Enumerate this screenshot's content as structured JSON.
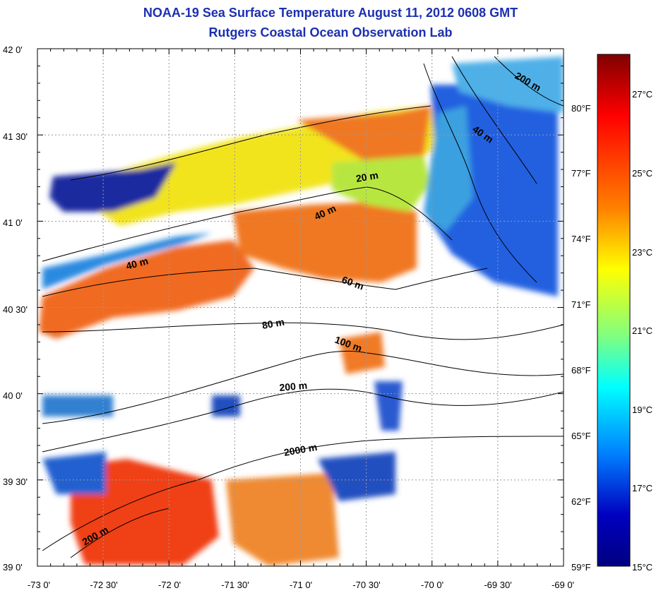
{
  "title": "NOAA-19 Sea Surface Temperature August 11, 2012 0608 GMT",
  "subtitle": "Rutgers Coastal Ocean Observation Lab",
  "latitude_labels": [
    "42 0'",
    "41 30'",
    "41 0'",
    "40 30'",
    "40 0'",
    "39 30'",
    "39 0'"
  ],
  "longitude_labels": [
    "-73 0'",
    "-72 30'",
    "-72 0'",
    "-71 30'",
    "-71 0'",
    "-70 30'",
    "-70 0'",
    "-69 30'",
    "-69 0'"
  ],
  "contour_labels": [
    "20 m",
    "40 m",
    "40 m",
    "40 m",
    "60 m",
    "80 m",
    "100 m",
    "200 m",
    "200 m",
    "2000 m",
    "200 m"
  ],
  "colorbar": {
    "celsius_labels": [
      "27°C",
      "25°C",
      "23°C",
      "21°C",
      "19°C",
      "17°C",
      "15°C"
    ],
    "fahrenheit_labels": [
      "80°F",
      "77°F",
      "74°F",
      "71°F",
      "68°F",
      "65°F",
      "62°F",
      "59°F"
    ],
    "colors": [
      "#800000",
      "#ff0000",
      "#ff8000",
      "#ffff00",
      "#80ff80",
      "#00ffff",
      "#0080ff",
      "#0000c0",
      "#000080"
    ]
  }
}
